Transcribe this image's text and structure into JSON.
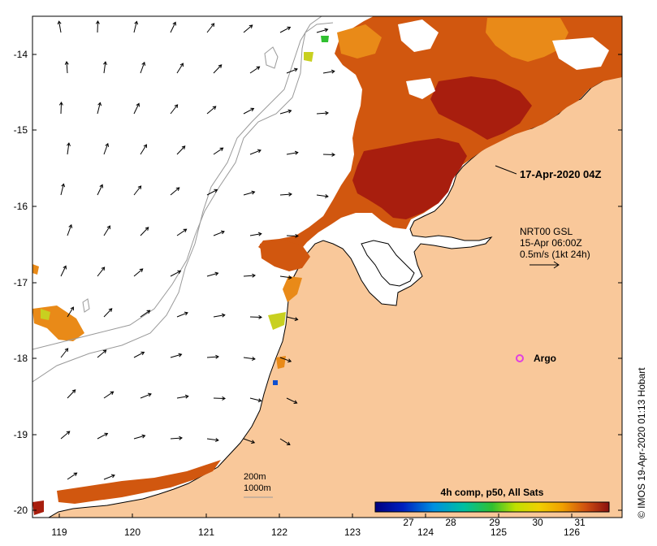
{
  "map": {
    "lon_ticks": [
      "119",
      "120",
      "121",
      "122",
      "123",
      "124",
      "125",
      "126"
    ],
    "lat_ticks": [
      "-14",
      "-15",
      "-16",
      "-17",
      "-18",
      "-19",
      "-20"
    ],
    "timestamp_label": "17-Apr-2020 04Z",
    "wind_legend": {
      "line1": "NRT00 GSL",
      "line2": "15-Apr 06:00Z",
      "line3": "0.5m/s (1kt 24h)"
    },
    "argo_label": "Argo",
    "contour_legend": {
      "line1": "200m",
      "line2": "1000m"
    },
    "colorbar": {
      "title": "4h comp, p50, All Sats",
      "ticks": [
        "27",
        "28",
        "29",
        "30",
        "31"
      ]
    },
    "credit": "© IMOS 19-Apr-2020 01:13 Hobart",
    "colors": {
      "land": "#f9c89a",
      "sst_hot": "#a81e0e",
      "sst_mid": "#d1570f",
      "sst_warm": "#e98a18",
      "argo": "#e040e0"
    }
  }
}
